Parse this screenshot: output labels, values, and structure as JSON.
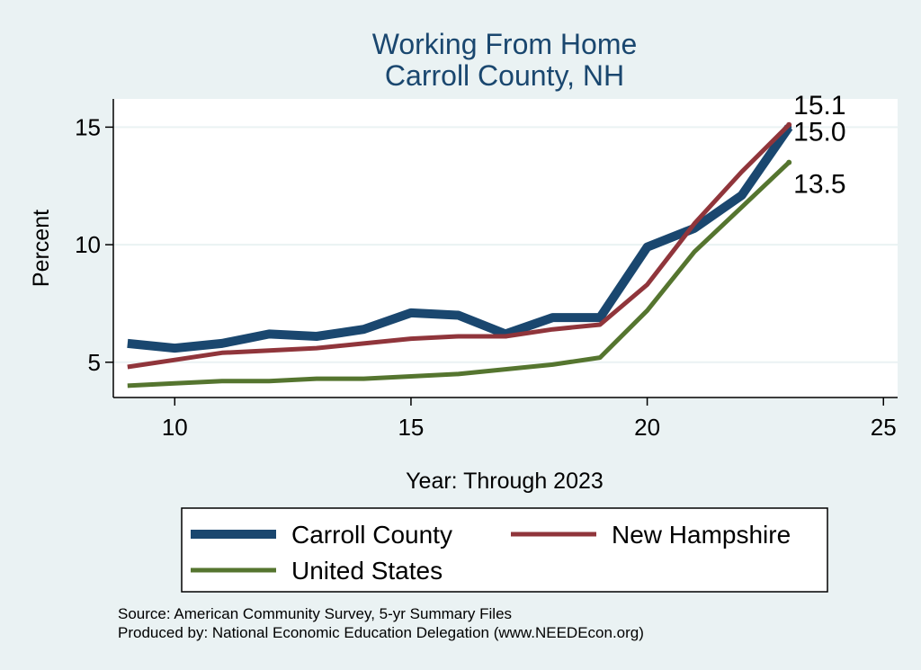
{
  "chart_data": {
    "type": "line",
    "title": [
      "Working From Home",
      "Carroll County, NH"
    ],
    "xlabel": "Year: Through 2023",
    "ylabel": "Percent",
    "xlim": [
      8.7,
      25.3
    ],
    "ylim": [
      3.5,
      16.2
    ],
    "xticks": [
      10,
      15,
      20,
      25
    ],
    "yticks": [
      5,
      10,
      15
    ],
    "grid": true,
    "legend_position": "bottom",
    "x": [
      9,
      10,
      11,
      12,
      13,
      14,
      15,
      16,
      17,
      18,
      19,
      20,
      21,
      22,
      23
    ],
    "series": [
      {
        "name": "Carroll County",
        "color": "#1a476f",
        "values": [
          5.8,
          5.6,
          5.8,
          6.2,
          6.1,
          6.4,
          7.1,
          7.0,
          6.2,
          6.9,
          6.9,
          9.9,
          10.7,
          12.1,
          15.0
        ],
        "end_label": "15.0"
      },
      {
        "name": "New Hampshire",
        "color": "#90353b",
        "values": [
          4.8,
          5.1,
          5.4,
          5.5,
          5.6,
          5.8,
          6.0,
          6.1,
          6.1,
          6.4,
          6.6,
          8.3,
          10.9,
          13.1,
          15.1
        ],
        "end_label": "15.1"
      },
      {
        "name": "United States",
        "color": "#55752f",
        "values": [
          4.0,
          4.1,
          4.2,
          4.2,
          4.3,
          4.3,
          4.4,
          4.5,
          4.7,
          4.9,
          5.2,
          7.2,
          9.7,
          11.6,
          13.5
        ],
        "end_label": "13.5"
      }
    ]
  },
  "source_lines": [
    "Source: American Community Survey, 5-yr Summary Files",
    "Produced by: National Economic Education Delegation (www.NEEDEcon.org)"
  ]
}
